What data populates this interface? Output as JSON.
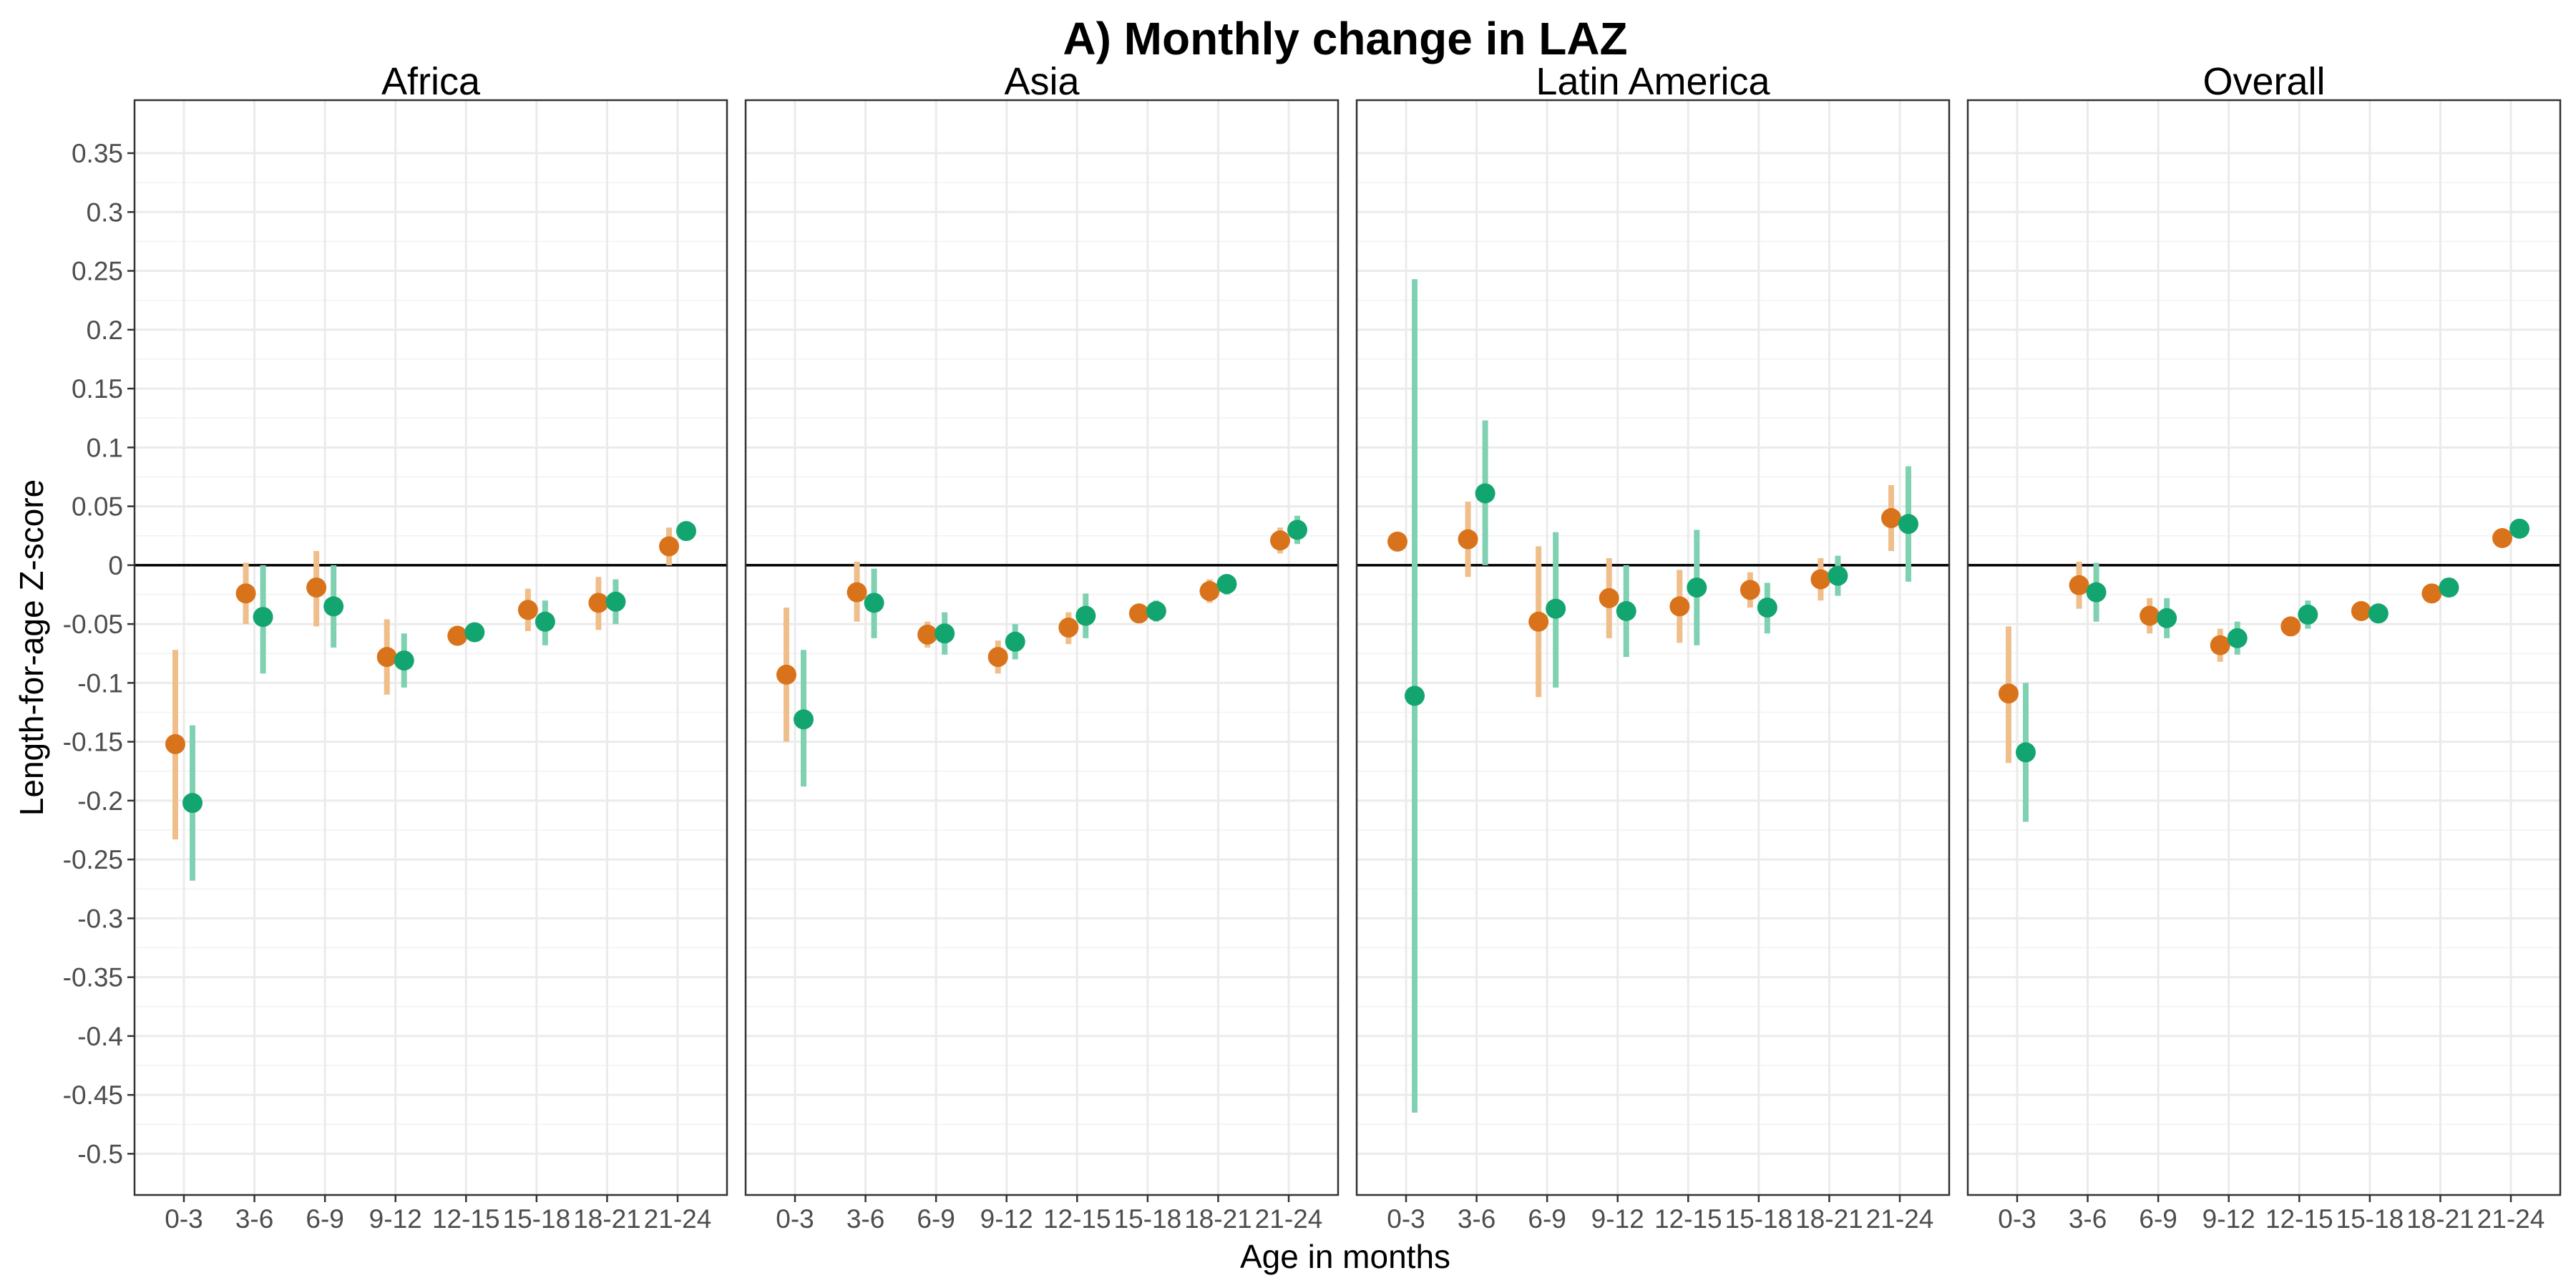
{
  "chart_data": {
    "type": "scatter",
    "title": "A) Monthly change in LAZ",
    "xlabel": "Age in months",
    "ylabel": "Length-for-age Z-score",
    "ylim": [
      -0.535,
      0.395
    ],
    "yticks": [
      0.35,
      0.3,
      0.25,
      0.2,
      0.15,
      0.1,
      0.05,
      0,
      -0.05,
      -0.1,
      -0.15,
      -0.2,
      -0.25,
      -0.3,
      -0.35,
      -0.4,
      -0.45,
      -0.5
    ],
    "ytick_labels": [
      "0.35",
      "0.3",
      "0.25",
      "0.2",
      "0.15",
      "0.1",
      "0.05",
      "0",
      "-0.05",
      "-0.1",
      "-0.15",
      "-0.2",
      "-0.25",
      "-0.3",
      "-0.35",
      "-0.4",
      "-0.45",
      "-0.5"
    ],
    "categories": [
      "0-3",
      "3-6",
      "6-9",
      "9-12",
      "12-15",
      "15-18",
      "18-21",
      "21-24"
    ],
    "grid": true,
    "legend": "none",
    "reference_line": 0,
    "series_colors": {
      "orange": {
        "point": "#d9731b",
        "interval": "#f0be8a"
      },
      "green": {
        "point": "#13a56f",
        "interval": "#7fd1b2"
      }
    },
    "panels": [
      {
        "label": "Africa",
        "orange": [
          {
            "y": -0.152,
            "lo": -0.233,
            "hi": -0.072
          },
          {
            "y": -0.024,
            "lo": -0.05,
            "hi": 0.002
          },
          {
            "y": -0.019,
            "lo": -0.052,
            "hi": 0.012
          },
          {
            "y": -0.078,
            "lo": -0.11,
            "hi": -0.046
          },
          {
            "y": -0.06,
            "lo": -0.066,
            "hi": -0.054
          },
          {
            "y": -0.038,
            "lo": -0.056,
            "hi": -0.02
          },
          {
            "y": -0.032,
            "lo": -0.055,
            "hi": -0.01
          },
          {
            "y": 0.016,
            "lo": 0.0,
            "hi": 0.032
          }
        ],
        "green": [
          {
            "y": -0.202,
            "lo": -0.268,
            "hi": -0.136
          },
          {
            "y": -0.044,
            "lo": -0.092,
            "hi": 0.0
          },
          {
            "y": -0.035,
            "lo": -0.07,
            "hi": 0.0
          },
          {
            "y": -0.081,
            "lo": -0.104,
            "hi": -0.058
          },
          {
            "y": -0.057,
            "lo": -0.062,
            "hi": -0.052
          },
          {
            "y": -0.048,
            "lo": -0.068,
            "hi": -0.03
          },
          {
            "y": -0.031,
            "lo": -0.05,
            "hi": -0.012
          },
          {
            "y": 0.029,
            "lo": 0.022,
            "hi": 0.036
          }
        ]
      },
      {
        "label": "Asia",
        "orange": [
          {
            "y": -0.093,
            "lo": -0.15,
            "hi": -0.036
          },
          {
            "y": -0.023,
            "lo": -0.048,
            "hi": 0.003
          },
          {
            "y": -0.059,
            "lo": -0.07,
            "hi": -0.048
          },
          {
            "y": -0.078,
            "lo": -0.092,
            "hi": -0.064
          },
          {
            "y": -0.053,
            "lo": -0.067,
            "hi": -0.04
          },
          {
            "y": -0.041,
            "lo": -0.047,
            "hi": -0.035
          },
          {
            "y": -0.022,
            "lo": -0.032,
            "hi": -0.012
          },
          {
            "y": 0.021,
            "lo": 0.01,
            "hi": 0.032
          }
        ],
        "green": [
          {
            "y": -0.131,
            "lo": -0.188,
            "hi": -0.072
          },
          {
            "y": -0.032,
            "lo": -0.062,
            "hi": -0.003
          },
          {
            "y": -0.058,
            "lo": -0.076,
            "hi": -0.04
          },
          {
            "y": -0.065,
            "lo": -0.08,
            "hi": -0.05
          },
          {
            "y": -0.043,
            "lo": -0.062,
            "hi": -0.024
          },
          {
            "y": -0.039,
            "lo": -0.048,
            "hi": -0.03
          },
          {
            "y": -0.016,
            "lo": -0.025,
            "hi": -0.008
          },
          {
            "y": 0.03,
            "lo": 0.018,
            "hi": 0.042
          }
        ]
      },
      {
        "label": "Latin America",
        "orange": [
          {
            "y": 0.02,
            "lo": 0.02,
            "hi": 0.02
          },
          {
            "y": 0.022,
            "lo": -0.01,
            "hi": 0.054
          },
          {
            "y": -0.048,
            "lo": -0.112,
            "hi": 0.016
          },
          {
            "y": -0.028,
            "lo": -0.062,
            "hi": 0.006
          },
          {
            "y": -0.035,
            "lo": -0.066,
            "hi": -0.004
          },
          {
            "y": -0.021,
            "lo": -0.036,
            "hi": -0.006
          },
          {
            "y": -0.012,
            "lo": -0.03,
            "hi": 0.006
          },
          {
            "y": 0.04,
            "lo": 0.012,
            "hi": 0.068
          }
        ],
        "green": [
          {
            "y": -0.111,
            "lo": -0.465,
            "hi": 0.243
          },
          {
            "y": 0.061,
            "lo": 0.0,
            "hi": 0.123
          },
          {
            "y": -0.037,
            "lo": -0.104,
            "hi": 0.028
          },
          {
            "y": -0.039,
            "lo": -0.078,
            "hi": 0.0
          },
          {
            "y": -0.019,
            "lo": -0.068,
            "hi": 0.03
          },
          {
            "y": -0.036,
            "lo": -0.058,
            "hi": -0.015
          },
          {
            "y": -0.009,
            "lo": -0.026,
            "hi": 0.008
          },
          {
            "y": 0.035,
            "lo": -0.014,
            "hi": 0.084
          }
        ]
      },
      {
        "label": "Overall",
        "orange": [
          {
            "y": -0.109,
            "lo": -0.168,
            "hi": -0.052
          },
          {
            "y": -0.017,
            "lo": -0.037,
            "hi": 0.003
          },
          {
            "y": -0.043,
            "lo": -0.058,
            "hi": -0.028
          },
          {
            "y": -0.068,
            "lo": -0.082,
            "hi": -0.054
          },
          {
            "y": -0.052,
            "lo": -0.058,
            "hi": -0.046
          },
          {
            "y": -0.039,
            "lo": -0.044,
            "hi": -0.034
          },
          {
            "y": -0.024,
            "lo": -0.03,
            "hi": -0.018
          },
          {
            "y": 0.023,
            "lo": 0.016,
            "hi": 0.03
          }
        ],
        "green": [
          {
            "y": -0.159,
            "lo": -0.218,
            "hi": -0.1
          },
          {
            "y": -0.023,
            "lo": -0.048,
            "hi": 0.002
          },
          {
            "y": -0.045,
            "lo": -0.062,
            "hi": -0.028
          },
          {
            "y": -0.062,
            "lo": -0.076,
            "hi": -0.048
          },
          {
            "y": -0.042,
            "lo": -0.054,
            "hi": -0.03
          },
          {
            "y": -0.041,
            "lo": -0.047,
            "hi": -0.035
          },
          {
            "y": -0.019,
            "lo": -0.026,
            "hi": -0.012
          },
          {
            "y": 0.031,
            "lo": 0.024,
            "hi": 0.038
          }
        ]
      }
    ]
  }
}
